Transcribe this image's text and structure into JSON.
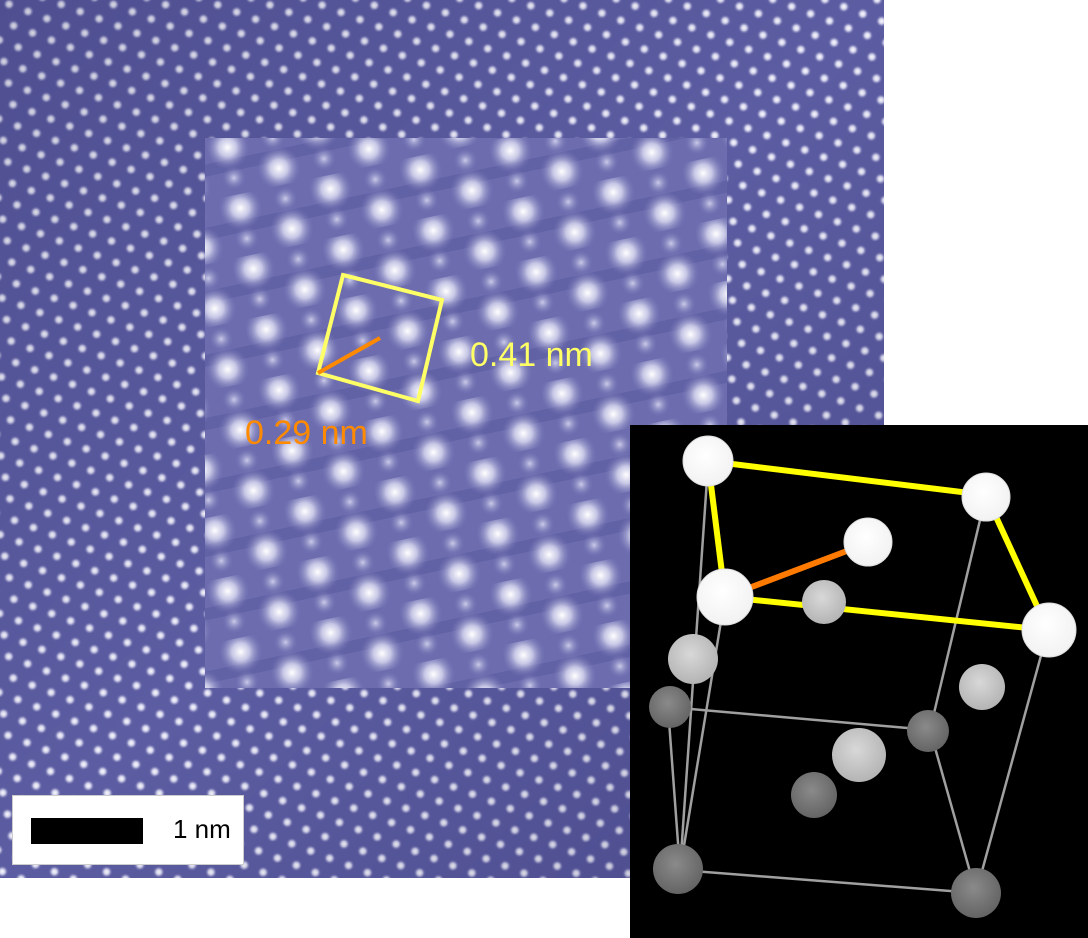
{
  "image": {
    "stm_background_color": "#5a5aa0",
    "atom_color": "#ffffff",
    "inset_background_color": "#6f6fb0"
  },
  "annotations": {
    "lattice_constant_label": "0.41 nm",
    "nearest_neighbor_label": "0.29 nm",
    "lattice_color": "#ffff66",
    "neighbor_color": "#ff8a00"
  },
  "scale_bar": {
    "label": "1 nm"
  },
  "crystal_model": {
    "background_color": "#000000",
    "highlight_edge_color": "#ffff00",
    "highlight_bond_color": "#ff7a00",
    "frame_edge_color": "#a0a0a0"
  }
}
